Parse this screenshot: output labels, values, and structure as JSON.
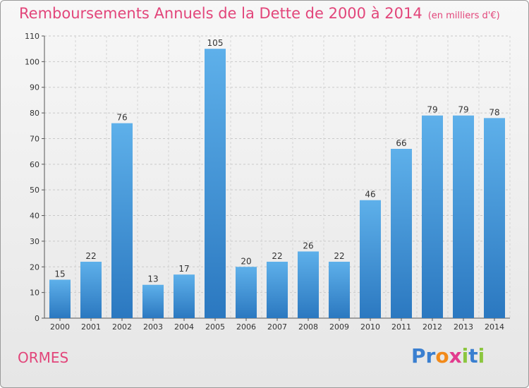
{
  "title": "Remboursements Annuels de la Dette de 2000 à 2014",
  "subtitle": "(en milliers d'€)",
  "location": "ORMES",
  "logo": {
    "text": "Proxiti",
    "letter_colors": [
      "#3a7fd0",
      "#3a7fd0",
      "#f28a1a",
      "#e23b8e",
      "#8cc63f",
      "#3a7fd0",
      "#8cc63f"
    ]
  },
  "chart_data": {
    "type": "bar",
    "categories": [
      "2000",
      "2001",
      "2002",
      "2003",
      "2004",
      "2005",
      "2006",
      "2007",
      "2008",
      "2009",
      "2010",
      "2011",
      "2012",
      "2013",
      "2014"
    ],
    "values": [
      15,
      22,
      76,
      13,
      17,
      105,
      20,
      22,
      26,
      22,
      46,
      66,
      79,
      79,
      78
    ],
    "ylim": [
      0,
      110
    ],
    "yticks": [
      0,
      10,
      20,
      30,
      40,
      50,
      60,
      70,
      80,
      90,
      100,
      110
    ],
    "grid": true,
    "bar_color": "#3d91d8",
    "bar_color_light": "#5eb0ea"
  }
}
